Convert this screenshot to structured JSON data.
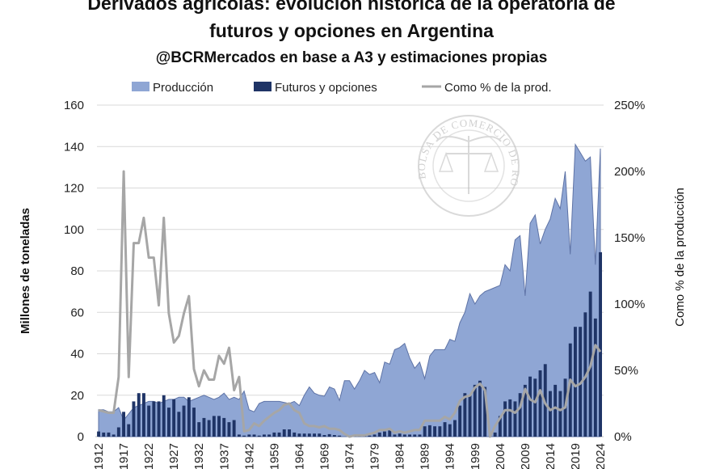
{
  "chart_data": {
    "type": "bar+area+line",
    "title": "Derivados agrícolas: evolución histórica de la operatoria de futuros y opciones en Argentina",
    "title_lines": [
      "Derivados agrícolas: evolución histórica de la operatoria de",
      "futuros y opciones en Argentina"
    ],
    "subtitle": "@BCRMercados en base a A3 y estimaciones propias",
    "ylabel": "Millones de toneladas",
    "y2label": "Como % de la producción",
    "ylim": [
      0,
      160
    ],
    "y2lim": [
      0,
      250
    ],
    "yticks": [
      "0",
      "20",
      "40",
      "60",
      "80",
      "100",
      "120",
      "140",
      "160"
    ],
    "y2ticks": [
      "0%",
      "50%",
      "100%",
      "150%",
      "200%",
      "250%"
    ],
    "grid": true,
    "legend_position": "top",
    "watermark": "BOLSA DE COMERCIO DE ROSARIO",
    "colors": {
      "produccion": "#8FA6D4",
      "produccion_edge": "#5E73A6",
      "futuros": "#1F3466",
      "porcentaje": "#A6A6A6"
    },
    "categories": [
      1912,
      1913,
      1914,
      1915,
      1916,
      1917,
      1918,
      1919,
      1920,
      1921,
      1922,
      1923,
      1924,
      1925,
      1926,
      1927,
      1928,
      1929,
      1930,
      1931,
      1932,
      1933,
      1934,
      1935,
      1936,
      1937,
      1938,
      1939,
      1940,
      1941,
      1942,
      1955,
      1956,
      1957,
      1958,
      1959,
      1960,
      1961,
      1962,
      1963,
      1964,
      1965,
      1966,
      1967,
      1968,
      1969,
      1970,
      1971,
      1972,
      1973,
      1974,
      1975,
      1976,
      1977,
      1978,
      1979,
      1980,
      1981,
      1982,
      1983,
      1984,
      1985,
      1986,
      1987,
      1988,
      1989,
      1990,
      1991,
      1992,
      1993,
      1994,
      1995,
      1996,
      1997,
      1998,
      1999,
      2000,
      2001,
      2002,
      2003,
      2004,
      2005,
      2006,
      2007,
      2008,
      2009,
      2010,
      2011,
      2012,
      2013,
      2014,
      2015,
      2016,
      2017,
      2018,
      2019,
      2020,
      2021,
      2022,
      2023,
      2024
    ],
    "xtick_labels": [
      "1912",
      "1917",
      "1922",
      "1927",
      "1932",
      "1937",
      "1942",
      "1959",
      "1964",
      "1969",
      "1974",
      "1979",
      "1984",
      "1989",
      "1994",
      "1999",
      "2004",
      "2009",
      "2014",
      "2019",
      "2024"
    ],
    "series": [
      {
        "name": "Producción",
        "type": "area",
        "axis": "left",
        "values": [
          13,
          13,
          12,
          12,
          14,
          8,
          11,
          14,
          15,
          16,
          17,
          17,
          16,
          17,
          18,
          18,
          19,
          19,
          17,
          18,
          19,
          20,
          19,
          18,
          19,
          21,
          18,
          19,
          18,
          22,
          13,
          12,
          16,
          17,
          17,
          17,
          17,
          16.5,
          16,
          17,
          15,
          20,
          24,
          21,
          20,
          19.5,
          24,
          23,
          17.5,
          27,
          27,
          23,
          27,
          32,
          30,
          31,
          26,
          36,
          35,
          42,
          43,
          45,
          38,
          33,
          36,
          28,
          39,
          42,
          42,
          42,
          47,
          46,
          55,
          60,
          69,
          64,
          68,
          70,
          71,
          72,
          73,
          83,
          80,
          95,
          97,
          68,
          103,
          107,
          93,
          100,
          105,
          115,
          110,
          128,
          88,
          141,
          137,
          133,
          135,
          83,
          139
        ]
      },
      {
        "name": "Futuros y opciones",
        "type": "bar",
        "axis": "left",
        "values": [
          2.5,
          2,
          2,
          1,
          4.5,
          12,
          6,
          17,
          21,
          21,
          15,
          17,
          17,
          20,
          14,
          18,
          12,
          15,
          19,
          14,
          7,
          9,
          8,
          10,
          10,
          9,
          7,
          8,
          1,
          0.5,
          1,
          1,
          0.5,
          1,
          1,
          2,
          2,
          3.5,
          3.5,
          2,
          1.5,
          1.5,
          1.5,
          1.5,
          1.5,
          0.8,
          1.2,
          0.8,
          0.5,
          0,
          0,
          0.5,
          0.5,
          0.5,
          0.5,
          1,
          2,
          2.5,
          3,
          1,
          1.5,
          1,
          1,
          1,
          1,
          5,
          5.5,
          5,
          5,
          7,
          6,
          8,
          15,
          21,
          20,
          25,
          27,
          24,
          0,
          2,
          10,
          17,
          18,
          17,
          21,
          25,
          29,
          28,
          32,
          35,
          22,
          25,
          22,
          28,
          45,
          53,
          53,
          60,
          70,
          57,
          89
        ]
      },
      {
        "name": "Como % de la prod.",
        "type": "line",
        "axis": "right",
        "values": [
          20,
          19,
          18,
          18,
          45,
          200,
          45,
          146,
          146,
          165,
          135,
          135,
          99,
          165,
          93,
          71,
          76,
          93,
          106,
          51,
          38,
          50,
          43,
          43,
          61,
          55,
          67,
          35,
          45,
          4,
          5,
          10,
          8,
          12,
          15,
          18,
          20,
          24,
          25,
          20,
          18,
          10,
          8,
          8,
          7,
          8,
          6,
          6,
          5,
          2,
          0,
          1,
          1,
          1,
          2,
          3,
          5,
          5,
          6,
          3,
          4,
          3,
          4,
          5,
          5,
          12,
          12,
          12,
          12,
          15,
          13,
          18,
          27,
          30,
          31,
          37,
          40,
          35,
          0,
          8,
          14,
          20,
          20,
          18,
          22,
          36,
          28,
          26,
          35,
          25,
          20,
          22,
          20,
          22,
          43,
          38,
          40,
          45,
          53,
          69,
          64
        ]
      }
    ]
  }
}
